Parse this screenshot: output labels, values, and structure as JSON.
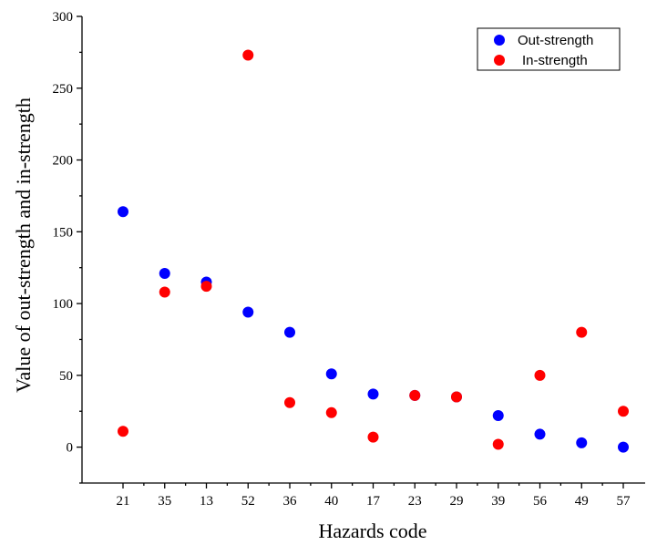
{
  "chart_data": {
    "type": "scatter",
    "xlabel": "Hazards code",
    "ylabel": "Value of out-strength and in-strength",
    "categories": [
      "21",
      "35",
      "13",
      "52",
      "36",
      "40",
      "17",
      "23",
      "29",
      "39",
      "56",
      "49",
      "57"
    ],
    "ylim": [
      -25,
      300
    ],
    "yticks": [
      0,
      50,
      100,
      150,
      200,
      250,
      300
    ],
    "grid": false,
    "legend": "top-right",
    "series": [
      {
        "name": "Out-strength",
        "color": "#0000ff",
        "values": [
          164,
          121,
          115,
          94,
          80,
          51,
          37,
          36,
          35,
          22,
          9,
          3,
          0
        ]
      },
      {
        "name": "In-strength",
        "color": "#ff0000",
        "values": [
          11,
          108,
          112,
          273,
          31,
          24,
          7,
          36,
          35,
          2,
          50,
          80,
          25
        ]
      }
    ]
  }
}
